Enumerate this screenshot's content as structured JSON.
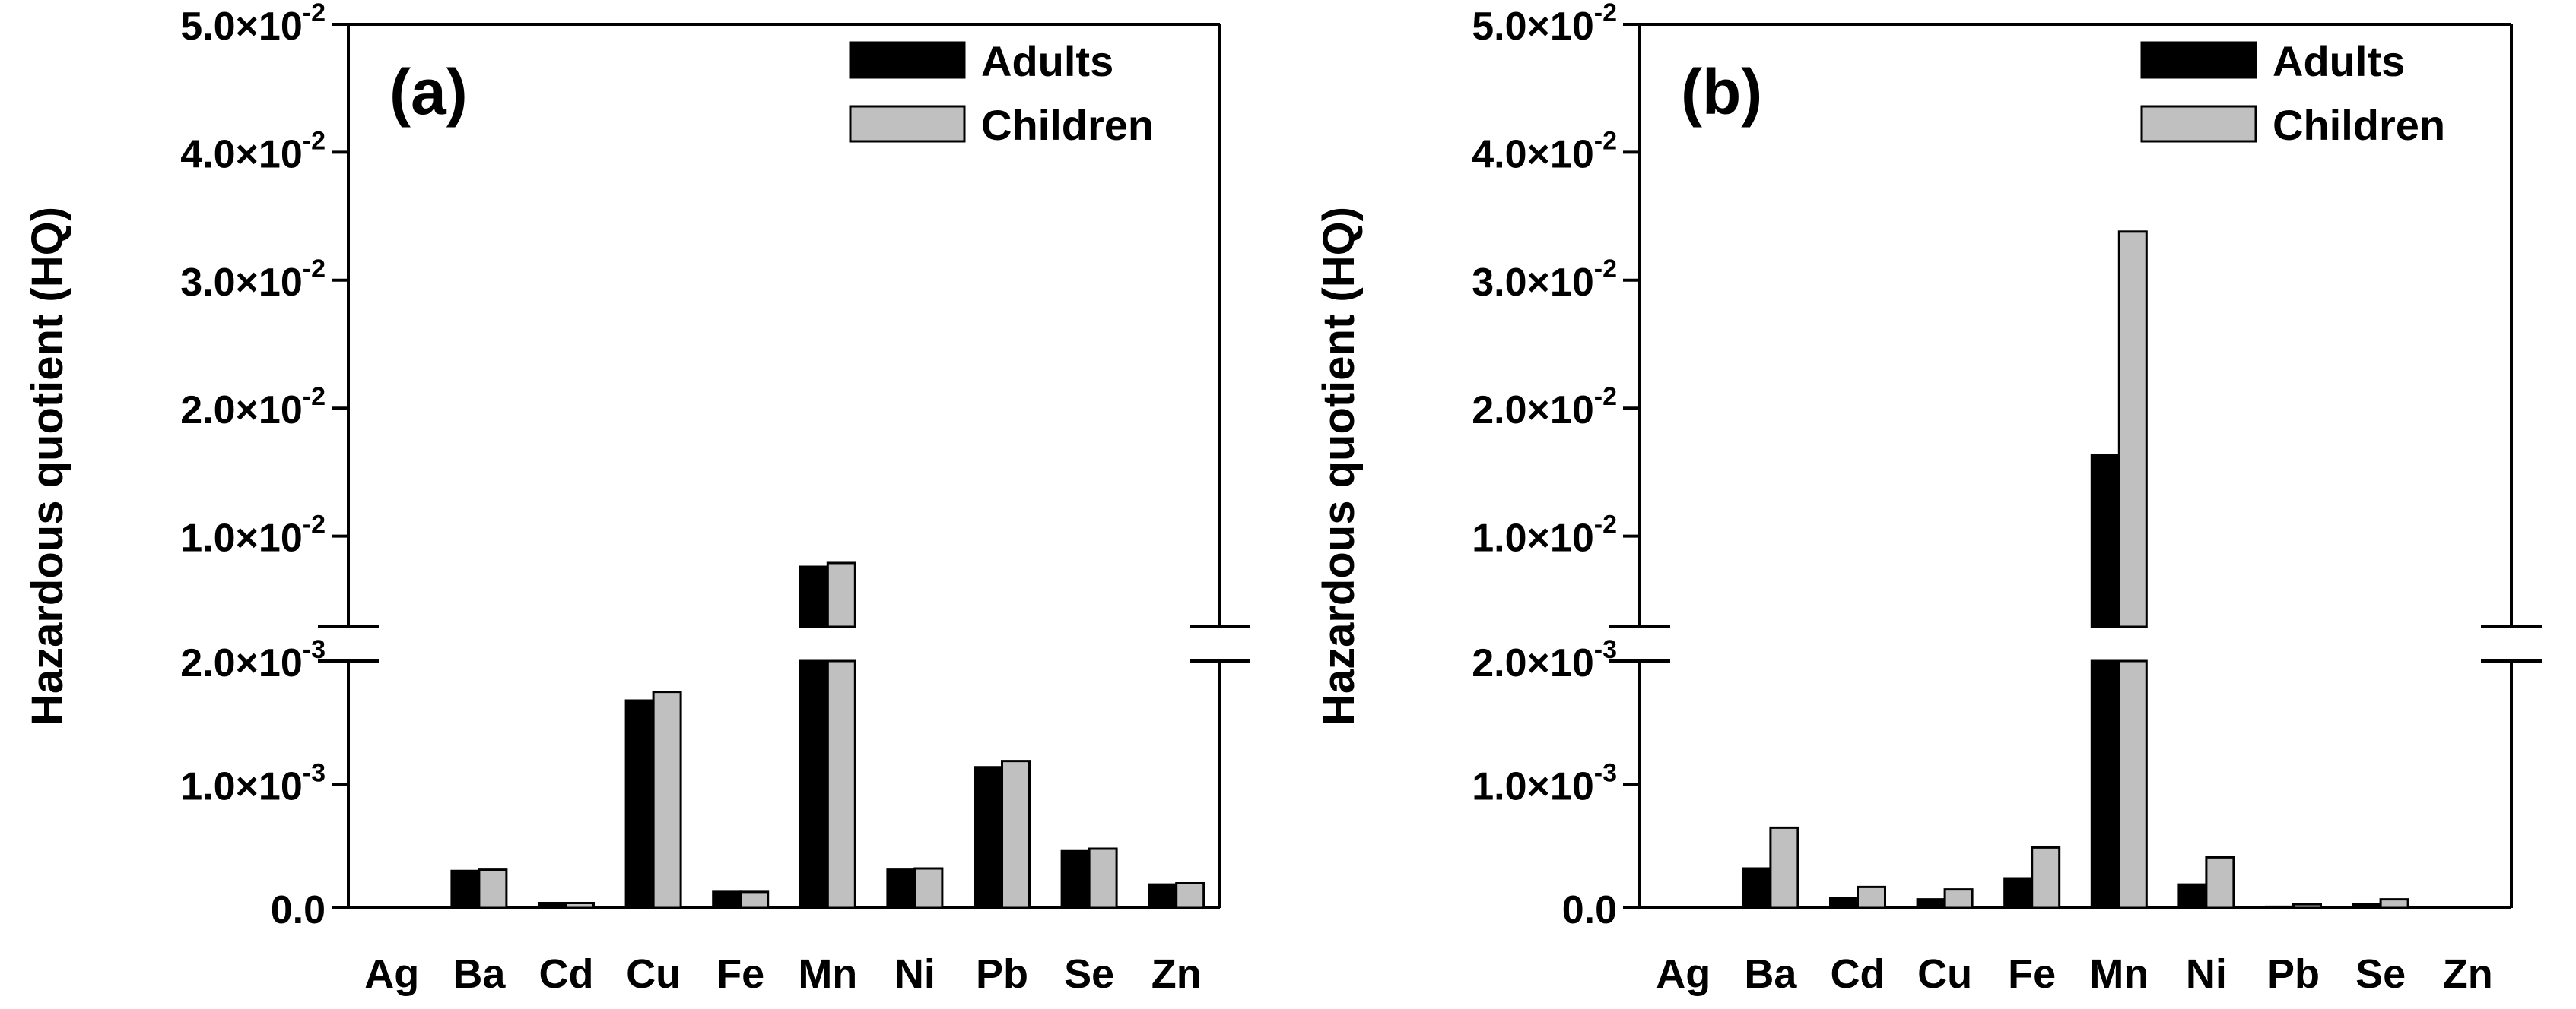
{
  "chart_data": [
    {
      "type": "bar",
      "panel_label": "(a)",
      "ylabel": "Hazardous quotient (HQ)",
      "categories": [
        "Ag",
        "Ba",
        "Cd",
        "Cu",
        "Fe",
        "Mn",
        "Ni",
        "Pb",
        "Se",
        "Zn"
      ],
      "series": [
        {
          "name": "Adults",
          "color": "#000000",
          "values": [
            0.0,
            0.0003,
            4e-05,
            0.00168,
            0.00013,
            0.0076,
            0.00031,
            0.00114,
            0.00046,
            0.00019
          ]
        },
        {
          "name": "Children",
          "color": "#c0c0c0",
          "values": [
            0.0,
            0.00031,
            4e-05,
            0.00175,
            0.00013,
            0.0079,
            0.00032,
            0.00119,
            0.00048,
            0.0002
          ]
        }
      ],
      "y_axis": {
        "broken": true,
        "lower_range": [
          0,
          0.002
        ],
        "upper_range": [
          0.003,
          0.05
        ],
        "lower_ticks": [
          {
            "value": 0,
            "mantissa": "0.0",
            "exponent": ""
          },
          {
            "value": 0.001,
            "mantissa": "1.0×10",
            "exponent": "-3"
          },
          {
            "value": 0.002,
            "mantissa": "2.0×10",
            "exponent": "-3"
          }
        ],
        "upper_ticks": [
          {
            "value": 0.01,
            "mantissa": "1.0×10",
            "exponent": "-2"
          },
          {
            "value": 0.02,
            "mantissa": "2.0×10",
            "exponent": "-2"
          },
          {
            "value": 0.03,
            "mantissa": "3.0×10",
            "exponent": "-2"
          },
          {
            "value": 0.04,
            "mantissa": "4.0×10",
            "exponent": "-2"
          },
          {
            "value": 0.05,
            "mantissa": "5.0×10",
            "exponent": "-2"
          }
        ]
      },
      "legend_position": "top-right"
    },
    {
      "type": "bar",
      "panel_label": "(b)",
      "ylabel": "Hazardous quotient (HQ)",
      "categories": [
        "Ag",
        "Ba",
        "Cd",
        "Cu",
        "Fe",
        "Mn",
        "Ni",
        "Pb",
        "Se",
        "Zn"
      ],
      "series": [
        {
          "name": "Adults",
          "color": "#000000",
          "values": [
            0.0,
            0.00032,
            8e-05,
            7e-05,
            0.00024,
            0.0163,
            0.00019,
            1e-05,
            3e-05,
            0.0
          ]
        },
        {
          "name": "Children",
          "color": "#c0c0c0",
          "values": [
            0.0,
            0.00065,
            0.00017,
            0.00015,
            0.00049,
            0.0338,
            0.00041,
            3e-05,
            7e-05,
            0.0
          ]
        }
      ],
      "y_axis": {
        "broken": true,
        "lower_range": [
          0,
          0.002
        ],
        "upper_range": [
          0.003,
          0.05
        ],
        "lower_ticks": [
          {
            "value": 0,
            "mantissa": "0.0",
            "exponent": ""
          },
          {
            "value": 0.001,
            "mantissa": "1.0×10",
            "exponent": "-3"
          },
          {
            "value": 0.002,
            "mantissa": "2.0×10",
            "exponent": "-3"
          }
        ],
        "upper_ticks": [
          {
            "value": 0.01,
            "mantissa": "1.0×10",
            "exponent": "-2"
          },
          {
            "value": 0.02,
            "mantissa": "2.0×10",
            "exponent": "-2"
          },
          {
            "value": 0.03,
            "mantissa": "3.0×10",
            "exponent": "-2"
          },
          {
            "value": 0.04,
            "mantissa": "4.0×10",
            "exponent": "-2"
          },
          {
            "value": 0.05,
            "mantissa": "5.0×10",
            "exponent": "-2"
          }
        ]
      },
      "legend_position": "top-right"
    }
  ]
}
